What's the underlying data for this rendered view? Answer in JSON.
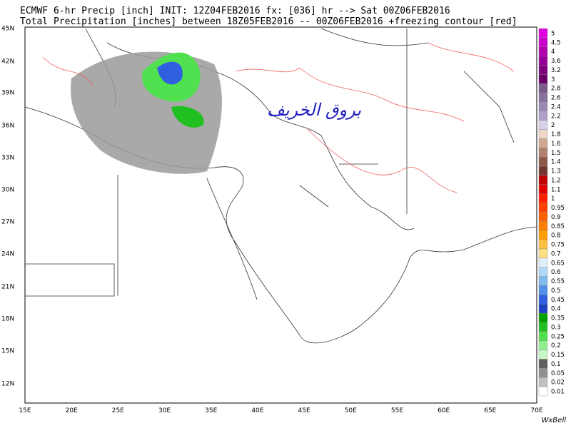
{
  "header": {
    "line1": "ECMWF 6-hr Precip [inch] INIT: 12Z04FEB2016 fx: [036] hr --> Sat 00Z06FEB2016",
    "line2": "Total Precipitation [inches] between 18Z05FEB2016 -- 00Z06FEB2016 +freezing contour [red]"
  },
  "map": {
    "lat_labels": [
      "45N",
      "42N",
      "39N",
      "36N",
      "33N",
      "30N",
      "27N",
      "24N",
      "21N",
      "18N",
      "15N",
      "12N"
    ],
    "lon_labels": [
      "15E",
      "20E",
      "25E",
      "30E",
      "35E",
      "40E",
      "45E",
      "50E",
      "55E",
      "60E",
      "65E",
      "70E"
    ],
    "watermark": "بروق الخريف"
  },
  "colorbar": [
    {
      "label": "5",
      "color": "#e000e0"
    },
    {
      "label": "4.5",
      "color": "#cc00cc"
    },
    {
      "label": "4",
      "color": "#b000b0"
    },
    {
      "label": "3.6",
      "color": "#990099"
    },
    {
      "label": "3.2",
      "color": "#800080"
    },
    {
      "label": "3",
      "color": "#6a006a"
    },
    {
      "label": "2.8",
      "color": "#7a5c8a"
    },
    {
      "label": "2.6",
      "color": "#8a70a0"
    },
    {
      "label": "2.4",
      "color": "#9a88b5"
    },
    {
      "label": "2.2",
      "color": "#b0a0c8"
    },
    {
      "label": "2",
      "color": "#d8d0e8"
    },
    {
      "label": "1.8",
      "color": "#f0d8c8"
    },
    {
      "label": "1.6",
      "color": "#d0a890"
    },
    {
      "label": "1.5",
      "color": "#b08070"
    },
    {
      "label": "1.4",
      "color": "#905848"
    },
    {
      "label": "1.3",
      "color": "#703830"
    },
    {
      "label": "1.2",
      "color": "#c00000"
    },
    {
      "label": "1.1",
      "color": "#e00000"
    },
    {
      "label": "1",
      "color": "#ff2000"
    },
    {
      "label": "0.95",
      "color": "#ff4000"
    },
    {
      "label": "0.9",
      "color": "#ff6000"
    },
    {
      "label": "0.85",
      "color": "#ff8000"
    },
    {
      "label": "0.8",
      "color": "#ffa000"
    },
    {
      "label": "0.75",
      "color": "#ffc040"
    },
    {
      "label": "0.7",
      "color": "#ffe080"
    },
    {
      "label": "0.65",
      "color": "#e0f0f8"
    },
    {
      "label": "0.6",
      "color": "#b0d8f8"
    },
    {
      "label": "0.55",
      "color": "#80b8f0"
    },
    {
      "label": "0.5",
      "color": "#5090e8"
    },
    {
      "label": "0.45",
      "color": "#3060e0"
    },
    {
      "label": "0.4",
      "color": "#1840c0"
    },
    {
      "label": "0.35",
      "color": "#00a000"
    },
    {
      "label": "0.3",
      "color": "#20c020"
    },
    {
      "label": "0.25",
      "color": "#50e050"
    },
    {
      "label": "0.2",
      "color": "#90f090"
    },
    {
      "label": "0.15",
      "color": "#c8f8c8"
    },
    {
      "label": "0.1",
      "color": "#606060"
    },
    {
      "label": "0.05",
      "color": "#909090"
    },
    {
      "label": "0.02",
      "color": "#c0c0c0"
    },
    {
      "label": "0.01",
      "color": "#ffffff"
    }
  ],
  "credit": "WxBell"
}
